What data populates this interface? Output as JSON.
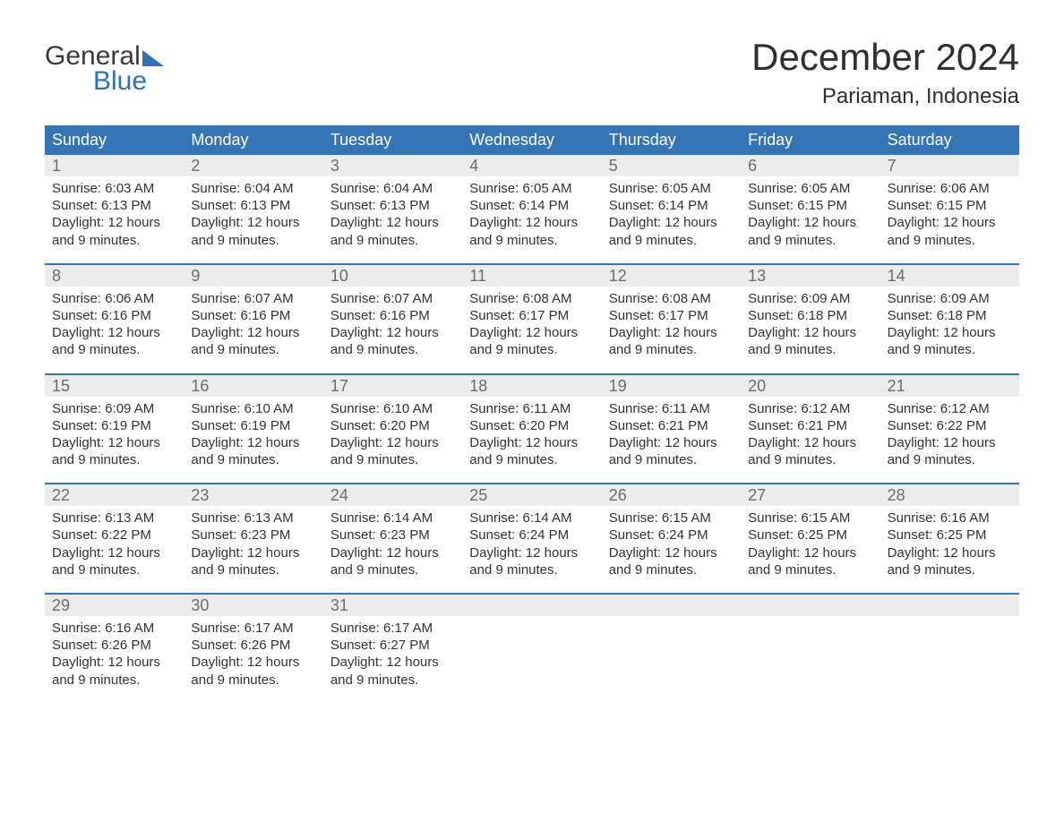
{
  "logo": {
    "word1": "General",
    "word2": "Blue"
  },
  "title": {
    "month": "December 2024",
    "location": "Pariaman, Indonesia"
  },
  "colors": {
    "header_bg": "#3575b6",
    "header_text": "#ffffff",
    "daynum_bg": "#ececec",
    "daynum_text": "#6c6c6c",
    "body_text": "#323232",
    "week_border": "#3575b6",
    "logo_blue": "#2e72b6",
    "background": "#ffffff"
  },
  "daynames": [
    "Sunday",
    "Monday",
    "Tuesday",
    "Wednesday",
    "Thursday",
    "Friday",
    "Saturday"
  ],
  "labels": {
    "sunrise": "Sunrise:",
    "sunset": "Sunset:",
    "daylight": "Daylight:"
  },
  "daylight_common": "12 hours and 9 minutes.",
  "weeks": [
    [
      {
        "n": "1",
        "sunrise": "6:03 AM",
        "sunset": "6:13 PM"
      },
      {
        "n": "2",
        "sunrise": "6:04 AM",
        "sunset": "6:13 PM"
      },
      {
        "n": "3",
        "sunrise": "6:04 AM",
        "sunset": "6:13 PM"
      },
      {
        "n": "4",
        "sunrise": "6:05 AM",
        "sunset": "6:14 PM"
      },
      {
        "n": "5",
        "sunrise": "6:05 AM",
        "sunset": "6:14 PM"
      },
      {
        "n": "6",
        "sunrise": "6:05 AM",
        "sunset": "6:15 PM"
      },
      {
        "n": "7",
        "sunrise": "6:06 AM",
        "sunset": "6:15 PM"
      }
    ],
    [
      {
        "n": "8",
        "sunrise": "6:06 AM",
        "sunset": "6:16 PM"
      },
      {
        "n": "9",
        "sunrise": "6:07 AM",
        "sunset": "6:16 PM"
      },
      {
        "n": "10",
        "sunrise": "6:07 AM",
        "sunset": "6:16 PM"
      },
      {
        "n": "11",
        "sunrise": "6:08 AM",
        "sunset": "6:17 PM"
      },
      {
        "n": "12",
        "sunrise": "6:08 AM",
        "sunset": "6:17 PM"
      },
      {
        "n": "13",
        "sunrise": "6:09 AM",
        "sunset": "6:18 PM"
      },
      {
        "n": "14",
        "sunrise": "6:09 AM",
        "sunset": "6:18 PM"
      }
    ],
    [
      {
        "n": "15",
        "sunrise": "6:09 AM",
        "sunset": "6:19 PM"
      },
      {
        "n": "16",
        "sunrise": "6:10 AM",
        "sunset": "6:19 PM"
      },
      {
        "n": "17",
        "sunrise": "6:10 AM",
        "sunset": "6:20 PM"
      },
      {
        "n": "18",
        "sunrise": "6:11 AM",
        "sunset": "6:20 PM"
      },
      {
        "n": "19",
        "sunrise": "6:11 AM",
        "sunset": "6:21 PM"
      },
      {
        "n": "20",
        "sunrise": "6:12 AM",
        "sunset": "6:21 PM"
      },
      {
        "n": "21",
        "sunrise": "6:12 AM",
        "sunset": "6:22 PM"
      }
    ],
    [
      {
        "n": "22",
        "sunrise": "6:13 AM",
        "sunset": "6:22 PM"
      },
      {
        "n": "23",
        "sunrise": "6:13 AM",
        "sunset": "6:23 PM"
      },
      {
        "n": "24",
        "sunrise": "6:14 AM",
        "sunset": "6:23 PM"
      },
      {
        "n": "25",
        "sunrise": "6:14 AM",
        "sunset": "6:24 PM"
      },
      {
        "n": "26",
        "sunrise": "6:15 AM",
        "sunset": "6:24 PM"
      },
      {
        "n": "27",
        "sunrise": "6:15 AM",
        "sunset": "6:25 PM"
      },
      {
        "n": "28",
        "sunrise": "6:16 AM",
        "sunset": "6:25 PM"
      }
    ],
    [
      {
        "n": "29",
        "sunrise": "6:16 AM",
        "sunset": "6:26 PM"
      },
      {
        "n": "30",
        "sunrise": "6:17 AM",
        "sunset": "6:26 PM"
      },
      {
        "n": "31",
        "sunrise": "6:17 AM",
        "sunset": "6:27 PM"
      },
      null,
      null,
      null,
      null
    ]
  ]
}
